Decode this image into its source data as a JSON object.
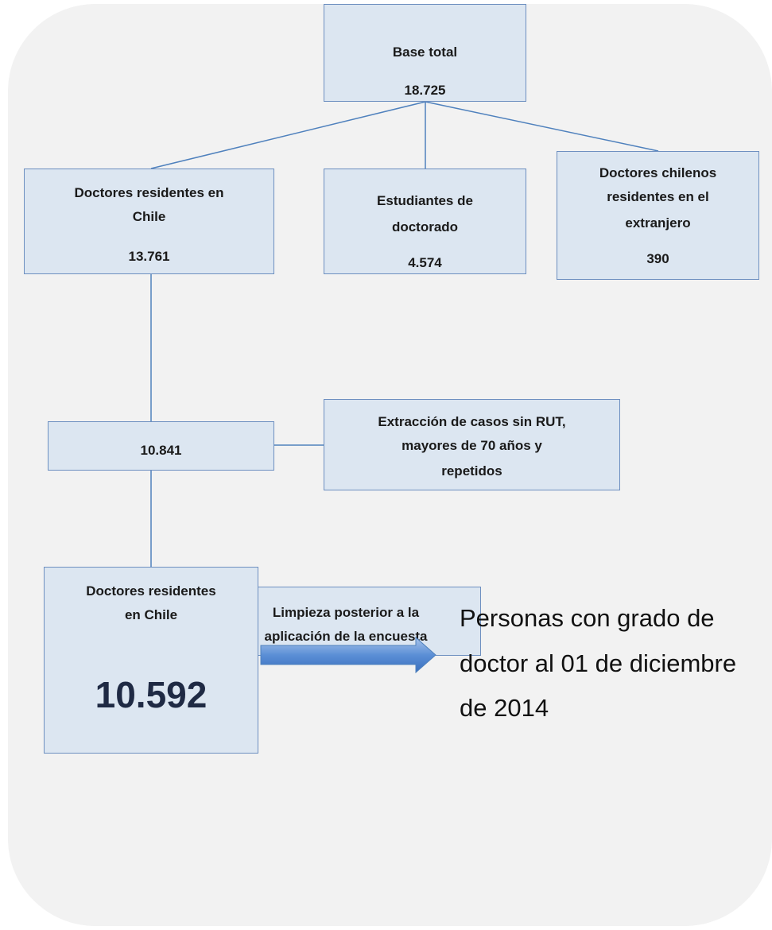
{
  "nodes": [
    {
      "label": [
        "Base total"
      ],
      "value": "18.725"
    },
    {
      "label": [
        "Doctores residentes en",
        "Chile"
      ],
      "value": "13.761"
    },
    {
      "label": [
        "Estudiantes de",
        "doctorado"
      ],
      "value": "4.574"
    },
    {
      "label": [
        "Doctores chilenos",
        "residentes en el",
        "extranjero"
      ],
      "value": "390"
    },
    {
      "label": [],
      "value": "10.841"
    },
    {
      "label": [
        "Extracción de casos sin RUT,",
        "mayores de 70 años y",
        "repetidos"
      ]
    },
    {
      "label": [
        "Limpieza posterior a la",
        "aplicación de la encuesta"
      ]
    },
    {
      "label": [
        "Doctores residentes",
        "en Chile"
      ],
      "value": "10.592"
    }
  ],
  "note": [
    "Personas con grado de",
    "doctor al 01 de diciembre",
    "de 2014"
  ]
}
